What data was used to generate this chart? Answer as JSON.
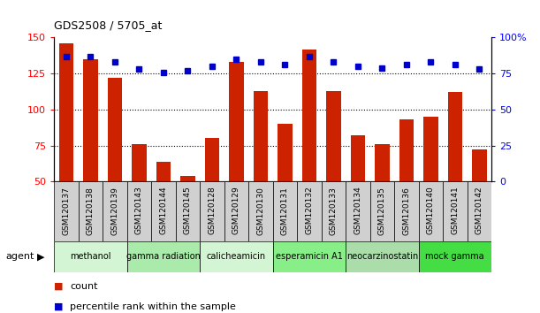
{
  "title": "GDS2508 / 5705_at",
  "samples": [
    "GSM120137",
    "GSM120138",
    "GSM120139",
    "GSM120143",
    "GSM120144",
    "GSM120145",
    "GSM120128",
    "GSM120129",
    "GSM120130",
    "GSM120131",
    "GSM120132",
    "GSM120133",
    "GSM120134",
    "GSM120135",
    "GSM120136",
    "GSM120140",
    "GSM120141",
    "GSM120142"
  ],
  "counts": [
    146,
    135,
    122,
    76,
    64,
    54,
    80,
    133,
    113,
    90,
    142,
    113,
    82,
    76,
    93,
    95,
    112,
    72
  ],
  "percentiles": [
    87,
    87,
    83,
    78,
    76,
    77,
    80,
    85,
    83,
    81,
    87,
    83,
    80,
    79,
    81,
    83,
    81,
    78
  ],
  "agents": [
    {
      "label": "methanol",
      "start": 0,
      "end": 3,
      "color": "#d4f5d4"
    },
    {
      "label": "gamma radiation",
      "start": 3,
      "end": 6,
      "color": "#aaeaaa"
    },
    {
      "label": "calicheamicin",
      "start": 6,
      "end": 9,
      "color": "#d4f5d4"
    },
    {
      "label": "esperamicin A1",
      "start": 9,
      "end": 12,
      "color": "#88ee88"
    },
    {
      "label": "neocarzinostatin",
      "start": 12,
      "end": 15,
      "color": "#aaddaa"
    },
    {
      "label": "mock gamma",
      "start": 15,
      "end": 18,
      "color": "#44dd44"
    }
  ],
  "ylim_left": [
    50,
    150
  ],
  "ylim_right": [
    0,
    100
  ],
  "yticks_left": [
    50,
    75,
    100,
    125,
    150
  ],
  "yticks_right": [
    0,
    25,
    50,
    75,
    100
  ],
  "ytick_labels_right": [
    "0",
    "25",
    "50",
    "75",
    "100%"
  ],
  "bar_color": "#cc2200",
  "dot_color": "#0000cc",
  "bar_bottom": 50,
  "gridlines": [
    75,
    100,
    125
  ]
}
